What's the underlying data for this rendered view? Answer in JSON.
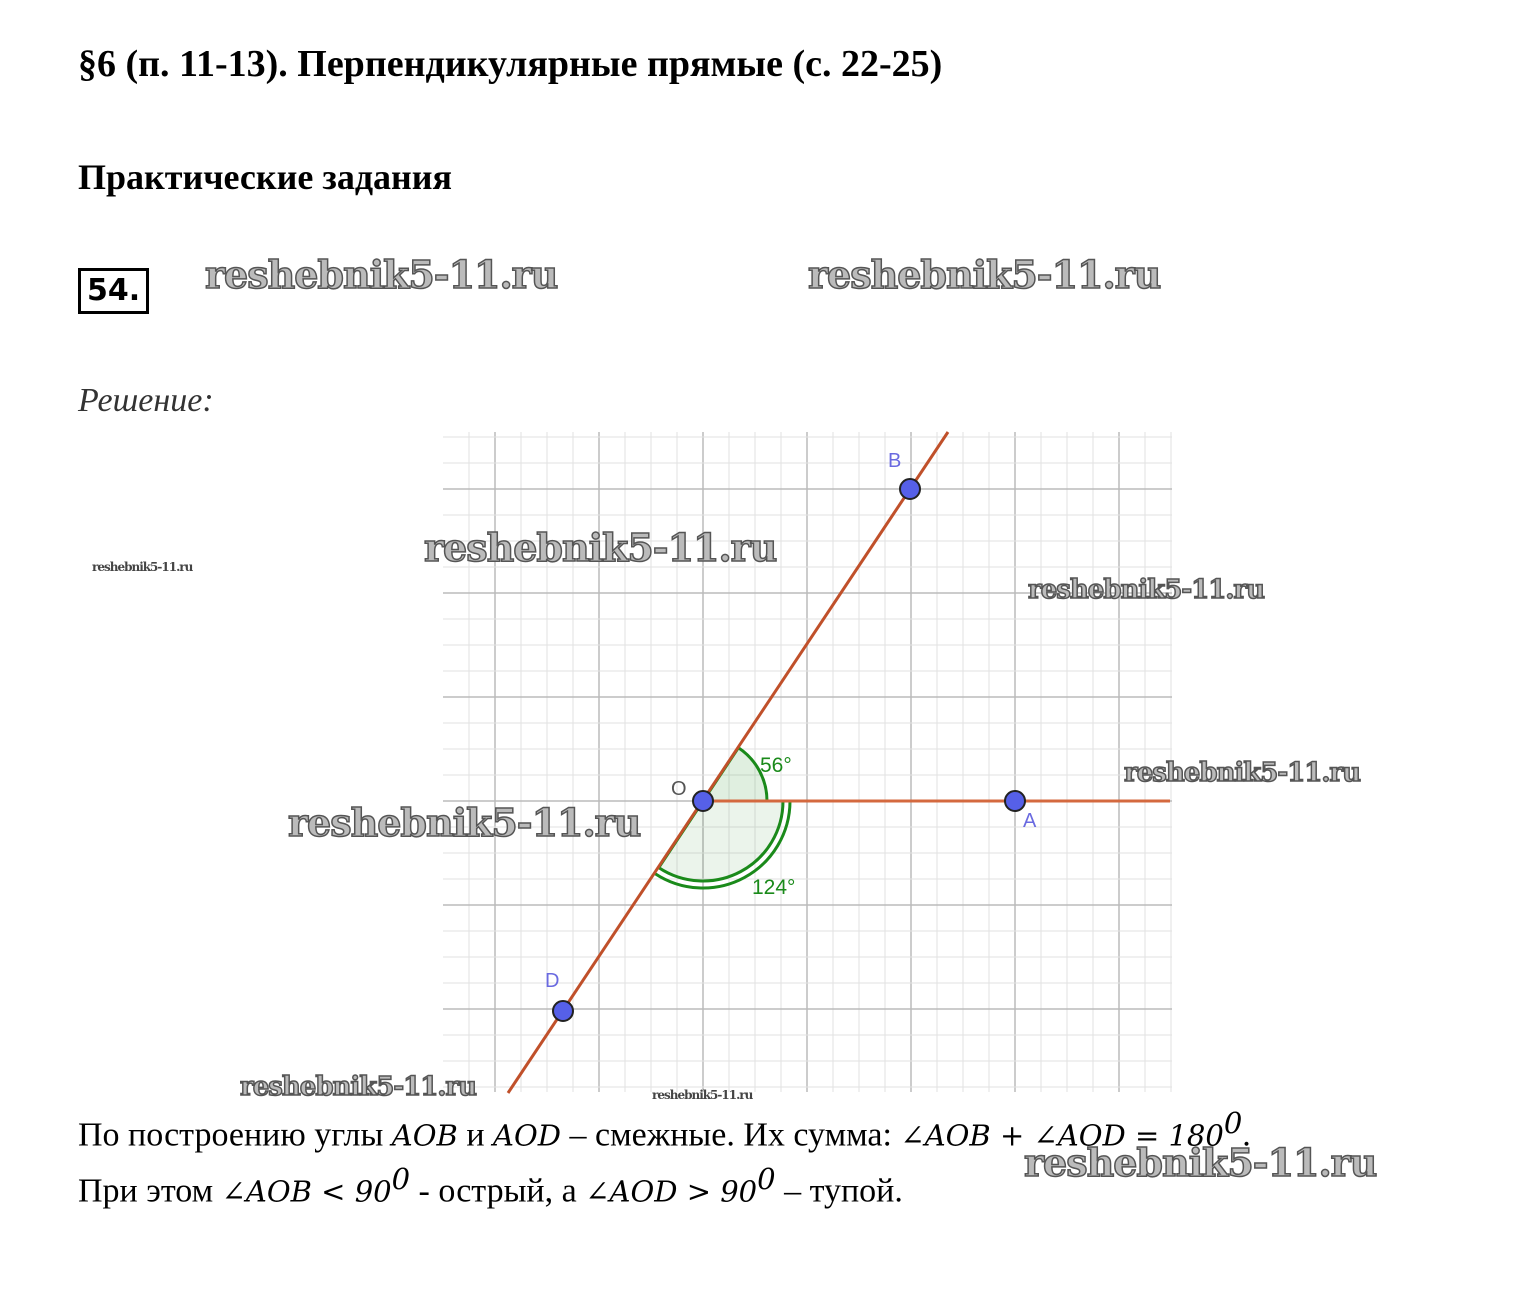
{
  "header": {
    "title": "§6 (п. 11-13). Перпендикулярные прямые (с. 22-25)",
    "subtitle": "Практические задания"
  },
  "task": {
    "number": "54."
  },
  "watermark": "reshebnik5-11.ru",
  "solution": {
    "label": "Решение:",
    "figure": {
      "points": [
        "B",
        "O",
        "A",
        "D"
      ],
      "angles": [
        "56°",
        "124°"
      ]
    },
    "lines": [
      [
        "По построению углы ",
        "AOB",
        " и ",
        "AOD",
        " – смежные. Их сумма: ",
        "∠AOB + ∠AOD = 180",
        "0",
        "."
      ],
      [
        "При этом ",
        "∠AOB < 90",
        "0",
        " - острый, а ",
        "∠AOD > 90",
        "0",
        " – тупой."
      ]
    ]
  }
}
